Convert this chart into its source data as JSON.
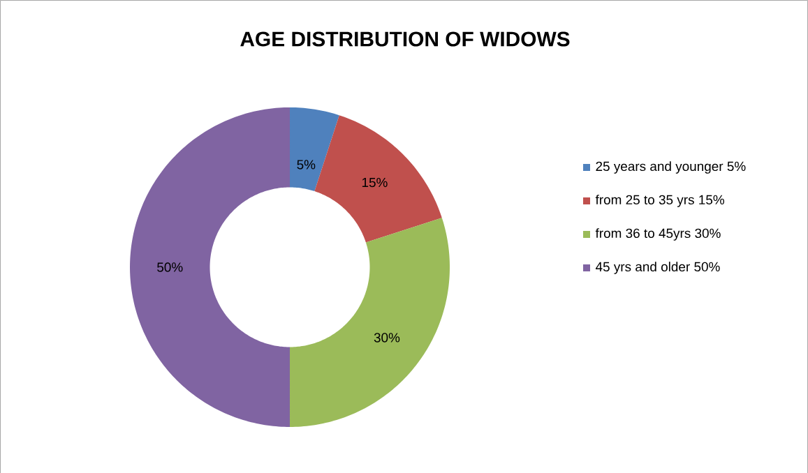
{
  "chart_data": {
    "type": "donut",
    "title": "AGE DISTRIBUTION OF WIDOWS",
    "categories": [
      "25 years and younger 5%",
      "from 25 to 35 yrs 15%",
      "from 36 to 45yrs 30%",
      "45 yrs and older 50%"
    ],
    "values": [
      5,
      15,
      30,
      50
    ],
    "colors": [
      "#4f81bd",
      "#c0504d",
      "#9bbb59",
      "#8064a2"
    ],
    "value_labels": [
      "5%",
      "15%",
      "30%",
      "50%"
    ],
    "legend": "right"
  }
}
